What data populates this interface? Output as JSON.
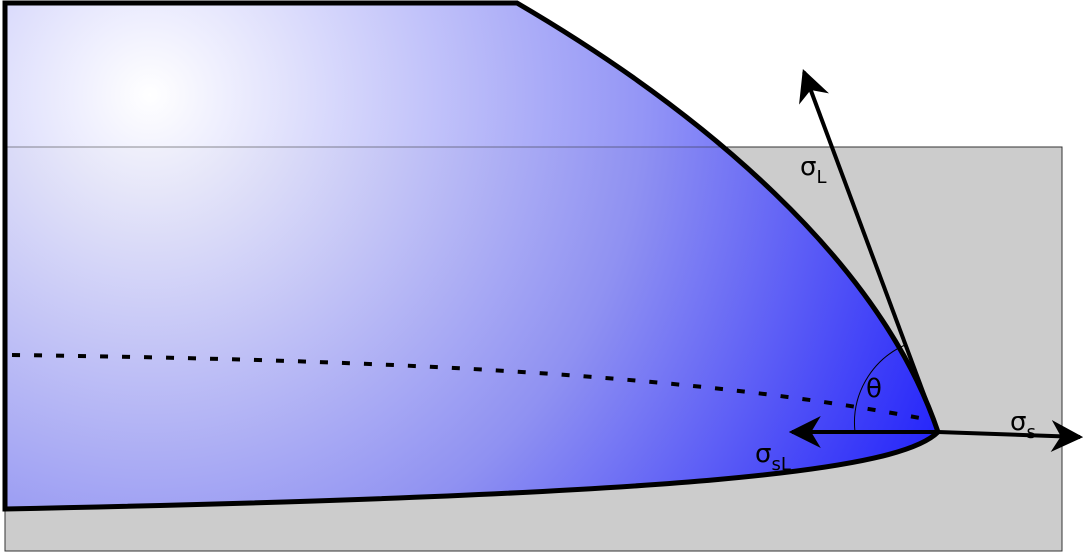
{
  "labels": {
    "liquid_tension": {
      "symbol": "σ",
      "subscript": "L"
    },
    "solid_tension": {
      "symbol": "σ",
      "subscript": "s"
    },
    "interface_tension": {
      "symbol": "σ",
      "subscript": "sL"
    },
    "contact_angle": "θ"
  }
}
